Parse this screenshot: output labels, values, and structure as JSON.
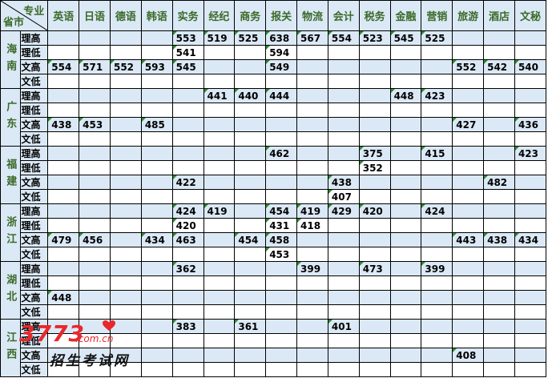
{
  "header": {
    "major_label": "专业",
    "province_label": "省市"
  },
  "majors": [
    "英语",
    "日语",
    "德语",
    "韩语",
    "实务",
    "经纪",
    "商务",
    "报关",
    "物流",
    "会计",
    "税务",
    "金融",
    "营销",
    "旅游",
    "酒店",
    "文秘"
  ],
  "provinces": [
    {
      "name": "海南",
      "rows": [
        {
          "type": "理高",
          "values": [
            "",
            "",
            "",
            "",
            "553",
            "519",
            "525",
            "638",
            "567",
            "554",
            "523",
            "545",
            "525",
            "",
            "",
            ""
          ]
        },
        {
          "type": "理低",
          "values": [
            "",
            "",
            "",
            "",
            "541",
            "",
            "",
            "594",
            "",
            "",
            "",
            "",
            "",
            "",
            "",
            ""
          ]
        },
        {
          "type": "文高",
          "values": [
            "554",
            "571",
            "552",
            "593",
            "545",
            "",
            "",
            "549",
            "",
            "",
            "",
            "",
            "",
            "552",
            "542",
            "540"
          ]
        },
        {
          "type": "文低",
          "values": [
            "",
            "",
            "",
            "",
            "",
            "",
            "",
            "",
            "",
            "",
            "",
            "",
            "",
            "",
            "",
            ""
          ]
        }
      ]
    },
    {
      "name": "广东",
      "rows": [
        {
          "type": "理高",
          "values": [
            "",
            "",
            "",
            "",
            "",
            "441",
            "440",
            "444",
            "",
            "",
            "",
            "448",
            "423",
            "",
            "",
            ""
          ]
        },
        {
          "type": "理低",
          "values": [
            "",
            "",
            "",
            "",
            "",
            "",
            "",
            "",
            "",
            "",
            "",
            "",
            "",
            "",
            "",
            ""
          ]
        },
        {
          "type": "文高",
          "values": [
            "438",
            "453",
            "",
            "485",
            "",
            "",
            "",
            "",
            "",
            "",
            "",
            "",
            "",
            "427",
            "",
            "436"
          ]
        },
        {
          "type": "文低",
          "values": [
            "",
            "",
            "",
            "",
            "",
            "",
            "",
            "",
            "",
            "",
            "",
            "",
            "",
            "",
            "",
            ""
          ]
        }
      ]
    },
    {
      "name": "福建",
      "rows": [
        {
          "type": "理高",
          "values": [
            "",
            "",
            "",
            "",
            "",
            "",
            "",
            "462",
            "",
            "",
            "375",
            "",
            "415",
            "",
            "",
            "423"
          ]
        },
        {
          "type": "理低",
          "values": [
            "",
            "",
            "",
            "",
            "",
            "",
            "",
            "",
            "",
            "",
            "352",
            "",
            "",
            "",
            "",
            ""
          ]
        },
        {
          "type": "文高",
          "values": [
            "",
            "",
            "",
            "",
            "422",
            "",
            "",
            "",
            "",
            "438",
            "",
            "",
            "",
            "",
            "482",
            ""
          ]
        },
        {
          "type": "文低",
          "values": [
            "",
            "",
            "",
            "",
            "",
            "",
            "",
            "",
            "",
            "407",
            "",
            "",
            "",
            "",
            "",
            ""
          ]
        }
      ]
    },
    {
      "name": "浙江",
      "rows": [
        {
          "type": "理高",
          "values": [
            "",
            "",
            "",
            "",
            "424",
            "419",
            "",
            "454",
            "419",
            "429",
            "420",
            "",
            "424",
            "",
            "",
            ""
          ]
        },
        {
          "type": "理低",
          "values": [
            "",
            "",
            "",
            "",
            "420",
            "",
            "",
            "431",
            "418",
            "",
            "",
            "",
            "",
            "",
            "",
            ""
          ]
        },
        {
          "type": "文高",
          "values": [
            "479",
            "456",
            "",
            "434",
            "463",
            "",
            "454",
            "458",
            "",
            "",
            "",
            "",
            "",
            "443",
            "438",
            "434"
          ]
        },
        {
          "type": "文低",
          "values": [
            "",
            "",
            "",
            "",
            "",
            "",
            "",
            "453",
            "",
            "",
            "",
            "",
            "",
            "",
            "",
            ""
          ]
        }
      ]
    },
    {
      "name": "湖北",
      "rows": [
        {
          "type": "理高",
          "values": [
            "",
            "",
            "",
            "",
            "362",
            "",
            "",
            "",
            "399",
            "",
            "473",
            "",
            "399",
            "",
            "",
            ""
          ]
        },
        {
          "type": "理低",
          "values": [
            "",
            "",
            "",
            "",
            "",
            "",
            "",
            "",
            "",
            "",
            "",
            "",
            "",
            "",
            "",
            ""
          ]
        },
        {
          "type": "文高",
          "values": [
            "448",
            "",
            "",
            "",
            "",
            "",
            "",
            "",
            "",
            "",
            "",
            "",
            "",
            "",
            "",
            ""
          ]
        },
        {
          "type": "文低",
          "values": [
            "",
            "",
            "",
            "",
            "",
            "",
            "",
            "",
            "",
            "",
            "",
            "",
            "",
            "",
            "",
            ""
          ]
        }
      ]
    },
    {
      "name": "江西",
      "rows": [
        {
          "type": "理高",
          "values": [
            "",
            "",
            "",
            "",
            "383",
            "",
            "361",
            "",
            "",
            "401",
            "",
            "",
            "",
            "",
            "",
            ""
          ]
        },
        {
          "type": "理低",
          "values": [
            "",
            "",
            "",
            "",
            "",
            "",
            "",
            "",
            "",
            "",
            "",
            "",
            "",
            "",
            "",
            ""
          ]
        },
        {
          "type": "文高",
          "values": [
            "",
            "",
            "",
            "",
            "",
            "",
            "",
            "",
            "",
            "",
            "",
            "",
            "",
            "408",
            "",
            ""
          ]
        },
        {
          "type": "文低",
          "values": [
            "",
            "",
            "",
            "",
            "",
            "",
            "",
            "",
            "",
            "",
            "",
            "",
            "",
            "",
            "",
            ""
          ]
        }
      ]
    }
  ],
  "watermark": {
    "logo_text": "3773",
    "domain_text": ".com.cn",
    "site_name": "招生考试网"
  },
  "colors": {
    "header_text": "#3c6a2a",
    "cell_blue": "#dbe9f6",
    "flag_green": "#2e8b2e",
    "watermark_red": "#e8282c"
  }
}
